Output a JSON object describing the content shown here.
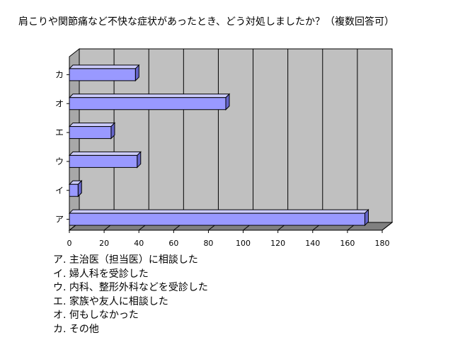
{
  "title": "肩こりや関節痛など不快な症状があったとき、どう対処しましたか？（複数回答可）",
  "chart_data": {
    "type": "bar",
    "orientation": "horizontal",
    "categories": [
      "ア",
      "イ",
      "ウ",
      "エ",
      "オ",
      "カ"
    ],
    "values": [
      170,
      5,
      39,
      24,
      90,
      38
    ],
    "xlim": [
      0,
      180
    ],
    "xticks": [
      0,
      20,
      40,
      60,
      80,
      100,
      120,
      140,
      160,
      180
    ],
    "grid": true,
    "colors": {
      "bar": "#9999ff",
      "plot_bg": "#c0c0c0",
      "border": "#000000"
    }
  },
  "legend": [
    "ア. 主治医（担当医）に相談した",
    "イ. 婦人科を受診した",
    "ウ. 内科、整形外科などを受診した",
    "エ. 家族や友人に相談した",
    "オ. 何もしなかった",
    "カ. その他"
  ]
}
